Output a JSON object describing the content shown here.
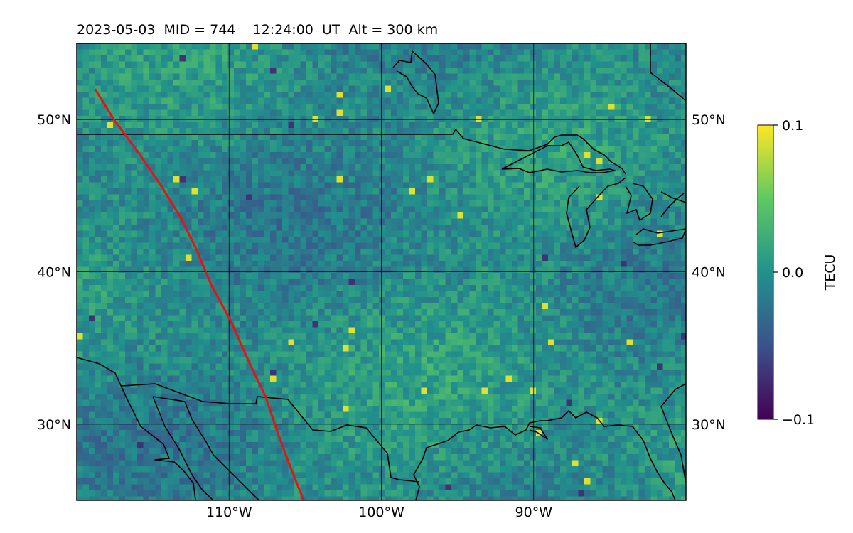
{
  "figure": {
    "title": "2023-05-03  MID = 744    12:24:00  UT  Alt = 300 km"
  },
  "map": {
    "lon_range": [
      -120,
      -80
    ],
    "lat_range": [
      25,
      55
    ],
    "gridlines": true,
    "lat_ticks": [
      {
        "value": 30,
        "label": "30°N"
      },
      {
        "value": 40,
        "label": "40°N"
      },
      {
        "value": 50,
        "label": "50°N"
      }
    ],
    "lon_ticks": [
      {
        "value": -110,
        "label": "110°W"
      },
      {
        "value": -100,
        "label": "100°W"
      },
      {
        "value": -90,
        "label": "90°W"
      }
    ],
    "track_color": "#e8130f",
    "track": [
      [
        -118.8,
        52.0
      ],
      [
        -117.5,
        49.9
      ],
      [
        -116.0,
        47.9
      ],
      [
        -114.5,
        45.7
      ],
      [
        -113.2,
        43.6
      ],
      [
        -112.2,
        41.6
      ],
      [
        -111.2,
        39.2
      ],
      [
        -109.9,
        36.8
      ],
      [
        -108.7,
        34.1
      ],
      [
        -107.6,
        31.8
      ],
      [
        -106.7,
        29.1
      ],
      [
        -105.9,
        27.0
      ],
      [
        -105.1,
        25.0
      ]
    ],
    "colormap": {
      "name": "viridis",
      "min": -0.1,
      "max": 0.1,
      "ticks": [
        {
          "value": 0.1,
          "label": "0.1"
        },
        {
          "value": 0.0,
          "label": "0.0"
        },
        {
          "value": -0.1,
          "label": "−0.1"
        }
      ],
      "label": "TECU",
      "stops": [
        "#440154",
        "#3b528b",
        "#21918c",
        "#5ec962",
        "#fde725"
      ]
    }
  }
}
